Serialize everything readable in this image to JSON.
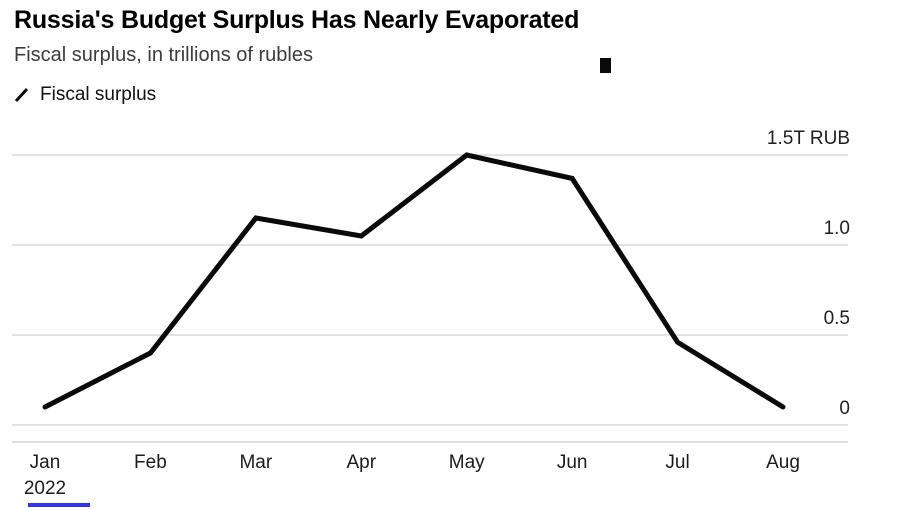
{
  "header": {
    "title": "Russia's Budget Surplus Has Nearly Evaporated",
    "subtitle": "Fiscal surplus, in trillions of rubles"
  },
  "legend": {
    "position": "top-left",
    "items": [
      {
        "label": "Fiscal surplus",
        "color": "#0a0a0a",
        "marker": "diagonal-line"
      }
    ]
  },
  "chart_data": {
    "type": "line",
    "title": "Russia's Budget Surplus Has Nearly Evaporated",
    "subtitle": "Fiscal surplus, in trillions of rubles",
    "x": [
      "Jan",
      "Feb",
      "Mar",
      "Apr",
      "May",
      "Jun",
      "Jul",
      "Aug"
    ],
    "x_sublabels": [
      "2022",
      "",
      "",
      "",
      "",
      "",
      "",
      ""
    ],
    "series": [
      {
        "name": "Fiscal surplus",
        "color": "#0a0a0a",
        "values": [
          0.1,
          0.4,
          1.15,
          1.05,
          1.5,
          1.37,
          0.46,
          0.1
        ]
      }
    ],
    "ylabel": "",
    "xlabel": "",
    "ylim": [
      0,
      1.6
    ],
    "yticks": [
      {
        "value": 0,
        "label": "0"
      },
      {
        "value": 0.5,
        "label": "0.5"
      },
      {
        "value": 1.0,
        "label": "1.0"
      },
      {
        "value": 1.5,
        "label": "1.5T RUB"
      }
    ],
    "grid": true,
    "gridline_color": "#d9d9d9",
    "baseline_color": "#d2d2d2",
    "legend_position": "top-left"
  },
  "colors": {
    "background": "#ffffff",
    "line": "#0a0a0a",
    "gridline": "#d9d9d9",
    "text_primary": "#000000",
    "text_secondary": "#3c3c3c",
    "axis_text": "#1f1f1f",
    "source_accent": "#3333ee"
  }
}
